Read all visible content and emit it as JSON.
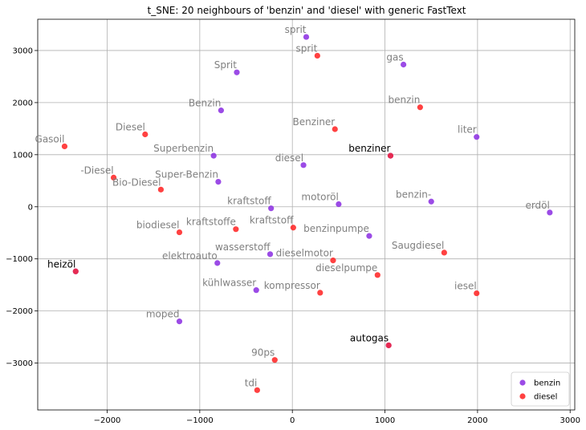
{
  "chart_data": {
    "type": "scatter",
    "title": "t_SNE: 20 neighbours of 'benzin' and 'diesel' with generic FastText",
    "xlabel": "",
    "ylabel": "",
    "xlim": [
      -2750,
      3050
    ],
    "ylim": [
      -3900,
      3600
    ],
    "x_ticks": [
      -2000,
      -1000,
      0,
      1000,
      2000,
      3000
    ],
    "y_ticks": [
      -3000,
      -2000,
      -1000,
      0,
      1000,
      2000,
      3000
    ],
    "x_tick_labels": [
      "−2000",
      "−1000",
      "0",
      "1000",
      "2000",
      "3000"
    ],
    "y_tick_labels": [
      "−3000",
      "−2000",
      "−1000",
      "0",
      "1000",
      "2000",
      "3000"
    ],
    "grid": true,
    "legend_position": "bottom-right",
    "colors": {
      "benzin": "#8a2be2",
      "diesel": "#ff2020",
      "label": "#808080",
      "label_dark": "#000000"
    },
    "series": [
      {
        "name": "benzin",
        "points": [
          {
            "label": "sprit",
            "x": 150,
            "y": 3260
          },
          {
            "label": "gas",
            "x": 1200,
            "y": 2730
          },
          {
            "label": "Sprit",
            "x": -600,
            "y": 2580
          },
          {
            "label": "Benzin",
            "x": -770,
            "y": 1850
          },
          {
            "label": "liter",
            "x": 1990,
            "y": 1340
          },
          {
            "label": "Superbenzin",
            "x": -850,
            "y": 980
          },
          {
            "label": "diesel",
            "x": 120,
            "y": 800
          },
          {
            "label": "Super-Benzin",
            "x": -800,
            "y": 480
          },
          {
            "label": "benzin-",
            "x": 1500,
            "y": 100
          },
          {
            "label": "motoröl",
            "x": 500,
            "y": 50
          },
          {
            "label": "kraftstoff",
            "x": -230,
            "y": -30
          },
          {
            "label": "erdöl",
            "x": 2780,
            "y": -110
          },
          {
            "label": "benzinpumpe",
            "x": 830,
            "y": -560
          },
          {
            "label": "wasserstoff",
            "x": -240,
            "y": -910
          },
          {
            "label": "elektroauto",
            "x": -810,
            "y": -1080
          },
          {
            "label": "kühlwasser",
            "x": -390,
            "y": -1600
          },
          {
            "label": "moped",
            "x": -1220,
            "y": -2200
          }
        ]
      },
      {
        "name": "diesel",
        "points": [
          {
            "label": "sprit",
            "x": 270,
            "y": 2900
          },
          {
            "label": "benzin",
            "x": 1380,
            "y": 1910
          },
          {
            "label": "Benziner",
            "x": 460,
            "y": 1490
          },
          {
            "label": "Diesel",
            "x": -1590,
            "y": 1390
          },
          {
            "label": "Gasoil",
            "x": -2460,
            "y": 1160
          },
          {
            "label": "-Diesel",
            "x": -1930,
            "y": 560
          },
          {
            "label": "Bio-Diesel",
            "x": -1420,
            "y": 330
          },
          {
            "label": "kraftstoffe",
            "x": -610,
            "y": -430
          },
          {
            "label": "kraftstoff",
            "x": 10,
            "y": -400
          },
          {
            "label": "biodiesel",
            "x": -1220,
            "y": -490
          },
          {
            "label": "Saugdiesel",
            "x": 1640,
            "y": -880
          },
          {
            "label": "dieselmotor",
            "x": 440,
            "y": -1030
          },
          {
            "label": "dieselpumpe",
            "x": 920,
            "y": -1310
          },
          {
            "label": "kompressor",
            "x": 300,
            "y": -1650
          },
          {
            "label": "iesel",
            "x": 1990,
            "y": -1660
          },
          {
            "label": "90ps",
            "x": -190,
            "y": -2940
          },
          {
            "label": "tdi",
            "x": -380,
            "y": -3520
          }
        ]
      }
    ],
    "shared_points": [
      {
        "label": "benziner",
        "x": 1060,
        "y": 980
      },
      {
        "label": "heizöl",
        "x": -2340,
        "y": -1240
      },
      {
        "label": "autogas",
        "x": 1040,
        "y": -2660
      }
    ],
    "legend": [
      {
        "name": "benzin",
        "color": "#8a2be2"
      },
      {
        "name": "diesel",
        "color": "#ff2020"
      }
    ]
  }
}
